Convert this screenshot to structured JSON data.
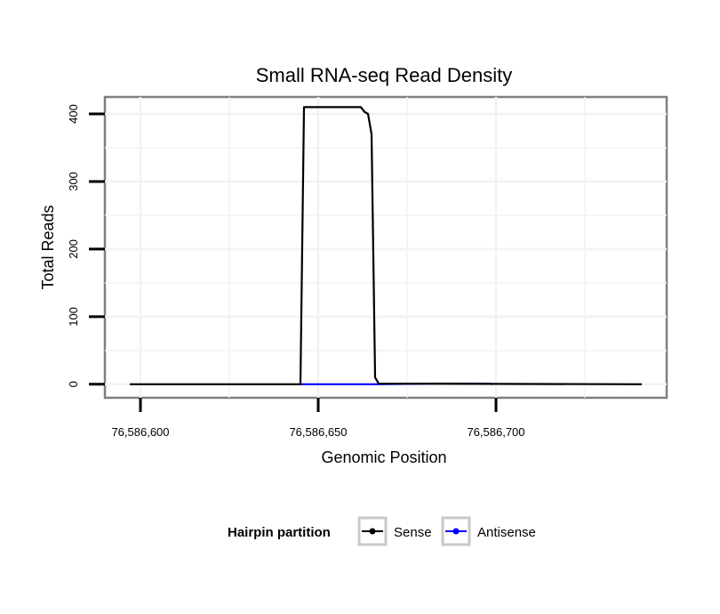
{
  "chart_data": {
    "type": "line",
    "title": "Small RNA-seq Read Density",
    "xlabel": "Genomic Position",
    "ylabel": "Total Reads",
    "xlim": [
      76586590,
      76586748
    ],
    "ylim": [
      -20,
      425
    ],
    "x_ticks": [
      76586600,
      76586650,
      76586700
    ],
    "x_tick_labels": [
      "76,586,600",
      "76,586,650",
      "76,586,700"
    ],
    "y_ticks": [
      0,
      100,
      200,
      300,
      400
    ],
    "y_tick_labels": [
      "0",
      "100",
      "200",
      "300",
      "400"
    ],
    "grid": true,
    "legend": {
      "title": "Hairpin partition",
      "position": "bottom",
      "entries": [
        {
          "name": "Sense",
          "color": "#000000"
        },
        {
          "name": "Antisense",
          "color": "#0000ff"
        }
      ]
    },
    "series": [
      {
        "name": "Sense",
        "color": "#000000",
        "x": [
          76586597,
          76586645,
          76586646,
          76586661,
          76586662,
          76586663,
          76586664,
          76586665,
          76586666,
          76586667,
          76586741
        ],
        "y": [
          0,
          0,
          410,
          410,
          410,
          403,
          400,
          370,
          10,
          1,
          0
        ]
      },
      {
        "name": "Antisense",
        "color": "#0000ff",
        "x": [
          76586645,
          76586666,
          76586683,
          76586698,
          76586699
        ],
        "y": [
          0,
          0,
          1,
          1,
          0
        ]
      }
    ]
  }
}
